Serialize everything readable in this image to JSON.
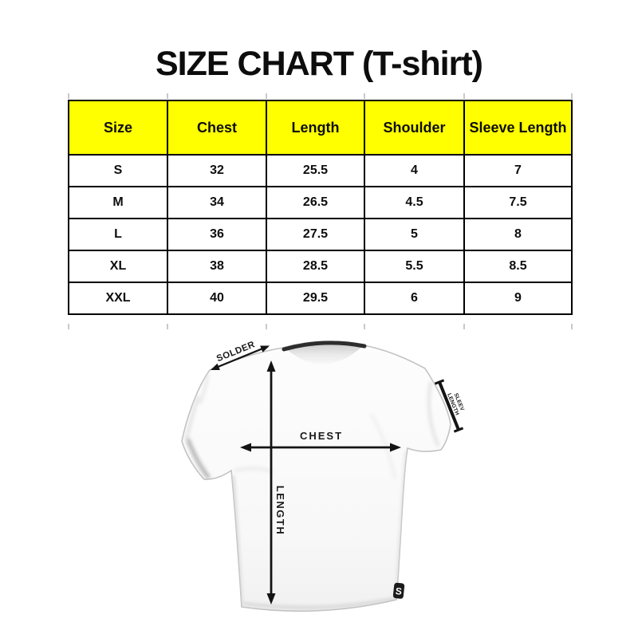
{
  "page": {
    "title": "SIZE CHART (T-shirt)",
    "background_color": "#ffffff"
  },
  "size_table": {
    "header_bg_color": "#ffff00",
    "border_color": "#000000",
    "columns": [
      "Size",
      "Chest",
      "Length",
      "Shoulder",
      "Sleeve Length"
    ],
    "rows": [
      [
        "S",
        "32",
        "25.5",
        "4",
        "7"
      ],
      [
        "M",
        "34",
        "26.5",
        "4.5",
        "7.5"
      ],
      [
        "L",
        "36",
        "27.5",
        "5",
        "8"
      ],
      [
        "XL",
        "38",
        "28.5",
        "5.5",
        "8.5"
      ],
      [
        "XXL",
        "40",
        "29.5",
        "6",
        "9"
      ]
    ]
  },
  "diagram": {
    "labels": {
      "shoulder": "SOLDER",
      "chest": "CHEST",
      "length": "LENGTH",
      "sleeve_line1": "SLEEV",
      "sleeve_line2": "LENGTH"
    },
    "brand_tag_glyph": "S",
    "shirt_color": "#fbfbfb",
    "collar_color": "#2d2d2d",
    "arrow_color": "#141414"
  }
}
